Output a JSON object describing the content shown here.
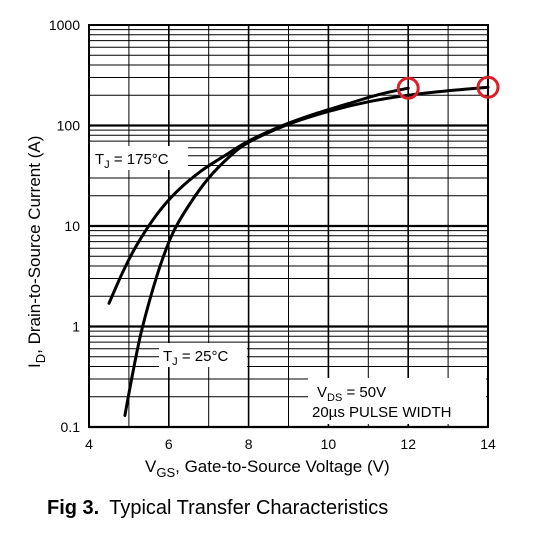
{
  "chart_data": {
    "type": "line",
    "x_scale": "linear",
    "y_scale": "log",
    "xlim": [
      4,
      14
    ],
    "ylim": [
      0.1,
      1000
    ],
    "x_ticks": [
      "4",
      "6",
      "8",
      "10",
      "12",
      "14"
    ],
    "y_ticks": [
      "1000",
      "100",
      "10",
      "1",
      "0.1"
    ],
    "grid": true,
    "xlabel": {
      "main": "V",
      "sub": "GS",
      "rest": ", Gate-to-Source Voltage (V)"
    },
    "ylabel": {
      "main": "I",
      "sub": "D",
      "rest": ",  Drain-to-Source Current (A)"
    },
    "series": [
      {
        "label": {
          "main": "T",
          "sub": "J",
          "rest": " = 175°C"
        },
        "x": [
          4.5,
          4.85,
          5.2,
          5.7,
          6.2,
          6.8,
          7.5,
          8.0,
          8.8,
          9.6,
          10.5,
          11.3,
          12.0
        ],
        "y": [
          1.7,
          3.5,
          6.5,
          13,
          22,
          35,
          53,
          70,
          98,
          128,
          165,
          205,
          235
        ]
      },
      {
        "label": {
          "main": "T",
          "sub": "J",
          "rest": " = 25°C"
        },
        "x": [
          4.9,
          5.1,
          5.3,
          5.55,
          5.8,
          6.1,
          6.5,
          7.0,
          7.5,
          8.0,
          9.0,
          10.0,
          11.0,
          12.0,
          13.0,
          14.0
        ],
        "y": [
          0.13,
          0.35,
          0.85,
          2.0,
          4.2,
          8.5,
          16,
          30,
          48,
          68,
          103,
          138,
          172,
          200,
          222,
          240
        ]
      }
    ],
    "conditions": {
      "vds": {
        "main": "V",
        "sub": "DS",
        "rest": " = 50V"
      },
      "pulse": "20µs PULSE WIDTH"
    },
    "highlights": [
      {
        "x": 12,
        "y": 235,
        "color": "#d8222a"
      },
      {
        "x": 14,
        "y": 240,
        "color": "#d8222a"
      }
    ]
  },
  "caption": {
    "number": "Fig 3.",
    "text": "Typical Transfer Characteristics"
  }
}
